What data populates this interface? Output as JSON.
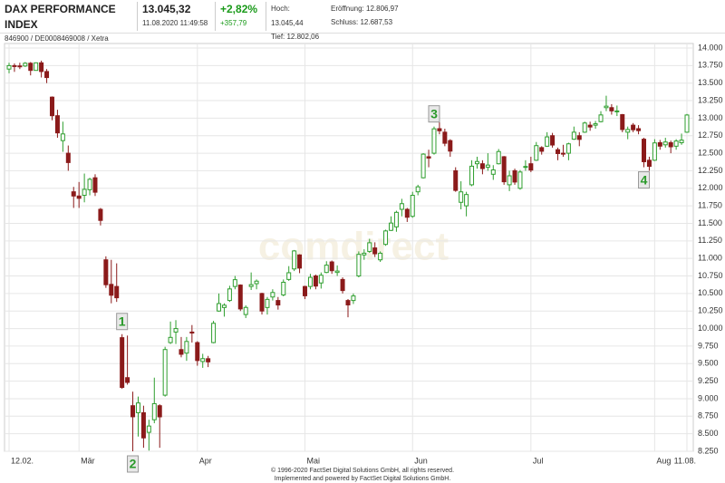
{
  "header": {
    "name": "DAX PERFORMANCE INDEX",
    "ids": "846900 / DE0008469008 / Xetra",
    "price": "13.045,32",
    "time": "11.08.2020 11:49:58",
    "change_pct": "+2,82%",
    "change_abs": "+357,79",
    "high": "Hoch: 13.045,44",
    "low": "Tief: 12.802,06",
    "open": "Eröffnung: 12.806,97",
    "close": "Schluss: 12.687,53"
  },
  "footer": {
    "line1": "© 1996-2020 FactSet Digital Solutions GmbH, all rights reserved.",
    "line2": "Implemented and powered by FactSet Digital Solutions GmbH."
  },
  "watermark": "comdirect",
  "chart_data": {
    "type": "candlestick",
    "up_color": "#2e9e2e",
    "down_color": "#8b1a1a",
    "grid": true,
    "categories": [
      "12.02.",
      null,
      null,
      null,
      null,
      null,
      null,
      null,
      null,
      null,
      null,
      null,
      null,
      "Mär",
      null,
      null,
      null,
      null,
      null,
      null,
      null,
      null,
      null,
      null,
      null,
      null,
      null,
      null,
      null,
      null,
      null,
      null,
      null,
      null,
      null,
      "Apr",
      null,
      null,
      null,
      null,
      null,
      null,
      null,
      null,
      null,
      null,
      null,
      null,
      null,
      null,
      null,
      null,
      null,
      null,
      null,
      "Mai",
      null,
      null,
      null,
      null,
      null,
      null,
      null,
      null,
      null,
      null,
      null,
      null,
      null,
      null,
      null,
      null,
      null,
      null,
      null,
      "Jun",
      null,
      null,
      null,
      null,
      null,
      null,
      null,
      null,
      null,
      null,
      null,
      null,
      null,
      null,
      null,
      null,
      null,
      null,
      null,
      null,
      null,
      "Jul",
      null,
      null,
      null,
      null,
      null,
      null,
      null,
      null,
      null,
      null,
      null,
      null,
      null,
      null,
      null,
      null,
      null,
      null,
      null,
      null,
      null,
      null,
      "Aug",
      null,
      null,
      null,
      null,
      null,
      "11.08."
    ],
    "open": [
      13700,
      13749,
      13745,
      13744,
      13783,
      13681,
      13789,
      13665,
      13300,
      13035,
      12680,
      12500,
      11950,
      11890,
      11900,
      11980,
      12150,
      11700,
      10980,
      10630,
      10600,
      9870,
      9300,
      8900,
      8800,
      8800,
      8520,
      8700,
      8900,
      9050,
      9800,
      9950,
      9700,
      9650,
      9950,
      9800,
      9530,
      9570,
      9800,
      10250,
      10300,
      10400,
      10600,
      10620,
      10200,
      10600,
      10640,
      10500,
      10300,
      10450,
      10400,
      10480,
      10700,
      10850,
      11050,
      10600,
      10600,
      10750,
      10650,
      10800,
      10950,
      10800,
      10700,
      10400,
      10400,
      10750,
      11050,
      11100,
      11150,
      10980,
      11200,
      11400,
      11450,
      11700,
      11700,
      11600,
      11950,
      12150,
      12450,
      12500,
      12850,
      12800,
      12680,
      12250,
      11800,
      11750,
      12050,
      12350,
      12350,
      12300,
      12200,
      12350,
      12450,
      12050,
      12250,
      12000,
      12300,
      12350,
      12400,
      12580,
      12600,
      12750,
      12550,
      12500,
      12500,
      12700,
      12750,
      12800,
      12900,
      12900,
      12950,
      13150,
      13150,
      13100,
      13050,
      12800,
      12900,
      12850,
      12700,
      12400,
      12400,
      12650,
      12620,
      12650,
      12600,
      12650,
      12800
    ],
    "high": [
      13790,
      13780,
      13790,
      13800,
      13800,
      13795,
      13820,
      13700,
      13310,
      13120,
      12950,
      12610,
      12020,
      12090,
      12210,
      12150,
      12200,
      11720,
      11030,
      10980,
      10930,
      9920,
      9900,
      9100,
      9030,
      8900,
      8700,
      9300,
      8920,
      9740,
      10100,
      10120,
      9880,
      9880,
      10050,
      9820,
      9640,
      9610,
      10110,
      10500,
      10360,
      10610,
      10750,
      10630,
      10330,
      10800,
      10700,
      10510,
      10450,
      10560,
      10450,
      10700,
      10890,
      11120,
      11060,
      10610,
      10780,
      10770,
      10800,
      10960,
      10970,
      10900,
      10730,
      10420,
      10500,
      11100,
      11130,
      11280,
      11230,
      11100,
      11410,
      11600,
      11680,
      11850,
      11720,
      11950,
      12050,
      12500,
      12550,
      12880,
      12950,
      12850,
      12700,
      12300,
      12100,
      11950,
      12400,
      12450,
      12400,
      12500,
      12330,
      12560,
      12460,
      12250,
      12280,
      12260,
      12400,
      12450,
      12660,
      12600,
      12800,
      12790,
      12580,
      12620,
      12650,
      12880,
      12800,
      12950,
      12950,
      12960,
      13100,
      13320,
      13200,
      13180,
      13060,
      12880,
      12930,
      12900,
      12720,
      12450,
      12700,
      12690,
      12720,
      12680,
      12700,
      12780,
      13060
    ],
    "low": [
      13640,
      13660,
      13700,
      13730,
      13610,
      13680,
      13580,
      13500,
      12970,
      12720,
      12520,
      12250,
      11720,
      11720,
      11800,
      11900,
      11890,
      11470,
      10580,
      10360,
      10380,
      9140,
      9200,
      8250,
      8460,
      8300,
      8260,
      8650,
      8300,
      9030,
      9780,
      9780,
      9590,
      9540,
      9800,
      9470,
      9440,
      9450,
      9790,
      10240,
      10170,
      10380,
      10560,
      10250,
      10150,
      10550,
      10560,
      10200,
      10200,
      10400,
      10270,
      10460,
      10680,
      10820,
      10790,
      10420,
      10560,
      10560,
      10570,
      10790,
      10780,
      10750,
      10500,
      10160,
      10350,
      10730,
      10980,
      11080,
      11020,
      10950,
      11180,
      11390,
      11380,
      11600,
      11520,
      11580,
      11900,
      12140,
      12300,
      12480,
      12770,
      12600,
      12450,
      11950,
      11700,
      11600,
      12030,
      12280,
      12200,
      12250,
      12120,
      12340,
      12050,
      11960,
      12050,
      11980,
      12250,
      12230,
      12390,
      12480,
      12590,
      12580,
      12400,
      12450,
      12400,
      12690,
      12600,
      12790,
      12820,
      12850,
      12940,
      13100,
      13050,
      13030,
      12800,
      12700,
      12800,
      12770,
      12300,
      12250,
      12390,
      12550,
      12580,
      12500,
      12550,
      12620,
      12790
    ],
    "close": [
      13749,
      13745,
      13744,
      13783,
      13681,
      13789,
      13665,
      13579,
      13035,
      12790,
      12775,
      12367,
      11890,
      11857,
      11985,
      12128,
      11944,
      11542,
      10625,
      10475,
      10439,
      9161,
      9232,
      8742,
      8939,
      8441,
      8610,
      8929,
      8741,
      9701,
      9874,
      10000,
      9633,
      9816,
      9936,
      9544,
      9571,
      9525,
      10075,
      10356,
      10333,
      10565,
      10697,
      10280,
      10301,
      10626,
      10676,
      10250,
      10416,
      10514,
      10336,
      10660,
      10796,
      11107,
      10862,
      10467,
      10730,
      10606,
      10760,
      10904,
      10825,
      10820,
      10542,
      10337,
      10465,
      11058,
      11075,
      11223,
      11066,
      11074,
      11392,
      11504,
      11657,
      11781,
      11587,
      11900,
      12021,
      12487,
      12431,
      12848,
      12820,
      12642,
      12530,
      11970,
      11949,
      11911,
      12315,
      12382,
      12281,
      12331,
      12262,
      12524,
      12093,
      12178,
      12089,
      12232,
      12311,
      12260,
      12608,
      12528,
      12733,
      12617,
      12495,
      12489,
      12634,
      12800,
      12697,
      12931,
      12874,
      12920,
      13046,
      13171,
      13104,
      13103,
      12838,
      12839,
      12835,
      12822,
      12379,
      12313,
      12647,
      12601,
      12660,
      12592,
      12674,
      12687,
      13045
    ],
    "annotations": [
      "1",
      "2",
      "3",
      "4"
    ],
    "ylim": [
      8250,
      14000
    ],
    "yticks": [
      {
        "value": 8250,
        "label": "8.250"
      },
      {
        "value": 8500,
        "label": "8.500"
      },
      {
        "value": 8750,
        "label": "8.750"
      },
      {
        "value": 9000,
        "label": "9.000"
      },
      {
        "value": 9250,
        "label": "9.250"
      },
      {
        "value": 9500,
        "label": "9.500"
      },
      {
        "value": 9750,
        "label": "9.750"
      },
      {
        "value": 10000,
        "label": "10.000"
      },
      {
        "value": 10250,
        "label": "10.250"
      },
      {
        "value": 10500,
        "label": "10.500"
      },
      {
        "value": 10750,
        "label": "10.750"
      },
      {
        "value": 11000,
        "label": "11.000"
      },
      {
        "value": 11250,
        "label": "11.250"
      },
      {
        "value": 11500,
        "label": "11.500"
      },
      {
        "value": 11750,
        "label": "11.750"
      },
      {
        "value": 12000,
        "label": "12.000"
      },
      {
        "value": 12250,
        "label": "12.250"
      },
      {
        "value": 12500,
        "label": "12.500"
      },
      {
        "value": 12750,
        "label": "12.750"
      },
      {
        "value": 13000,
        "label": "13.000"
      },
      {
        "value": 13250,
        "label": "13.250"
      },
      {
        "value": 13500,
        "label": "13.500"
      },
      {
        "value": 13750,
        "label": "13.750"
      },
      {
        "value": 14000,
        "label": "14.000"
      }
    ]
  }
}
